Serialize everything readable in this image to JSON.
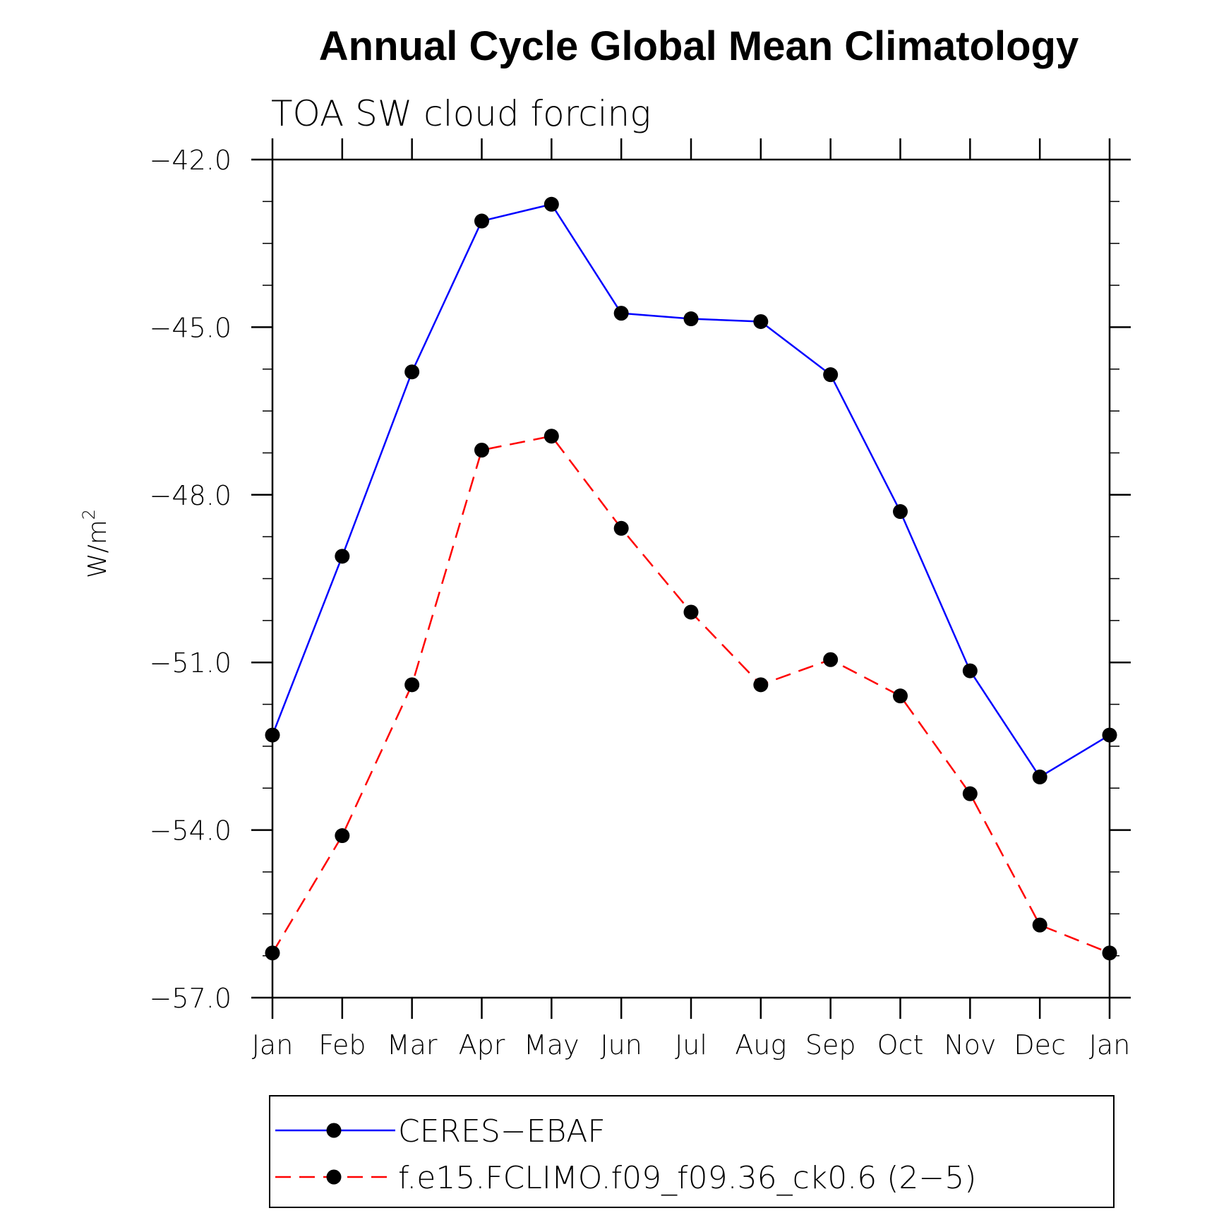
{
  "chart_data": {
    "type": "line",
    "title": "Annual Cycle Global Mean Climatology",
    "subtitle": "TOA SW cloud forcing",
    "ylabel": "W/m",
    "ylabel_superscript": "2",
    "xlabel": "",
    "categories": [
      "Jan",
      "Feb",
      "Mar",
      "Apr",
      "May",
      "Jun",
      "Jul",
      "Aug",
      "Sep",
      "Oct",
      "Nov",
      "Dec",
      "Jan"
    ],
    "ylim": [
      -57.0,
      -42.0
    ],
    "yticks": [
      -42.0,
      -45.0,
      -48.0,
      -51.0,
      -54.0,
      -57.0
    ],
    "ytick_labels": [
      "−42.0",
      "−45.0",
      "−48.0",
      "−51.0",
      "−54.0",
      "−57.0"
    ],
    "series": [
      {
        "name": "CERES−EBAF",
        "color": "#0000ff",
        "dash": "solid",
        "marker": "filled-circle",
        "values": [
          -52.3,
          -49.1,
          -45.8,
          -43.1,
          -42.8,
          -44.75,
          -44.85,
          -44.9,
          -45.85,
          -48.3,
          -51.15,
          -53.05,
          -52.3
        ]
      },
      {
        "name": "f.e15.FCLIMO.f09_f09.36_ck0.6 (2−5)",
        "color": "#ff0000",
        "dash": "dashed",
        "marker": "filled-circle",
        "values": [
          -56.2,
          -54.1,
          -51.4,
          -47.2,
          -46.95,
          -48.6,
          -50.1,
          -51.4,
          -50.95,
          -51.6,
          -53.35,
          -55.7,
          -56.2
        ]
      }
    ],
    "legend_position": "bottom"
  }
}
